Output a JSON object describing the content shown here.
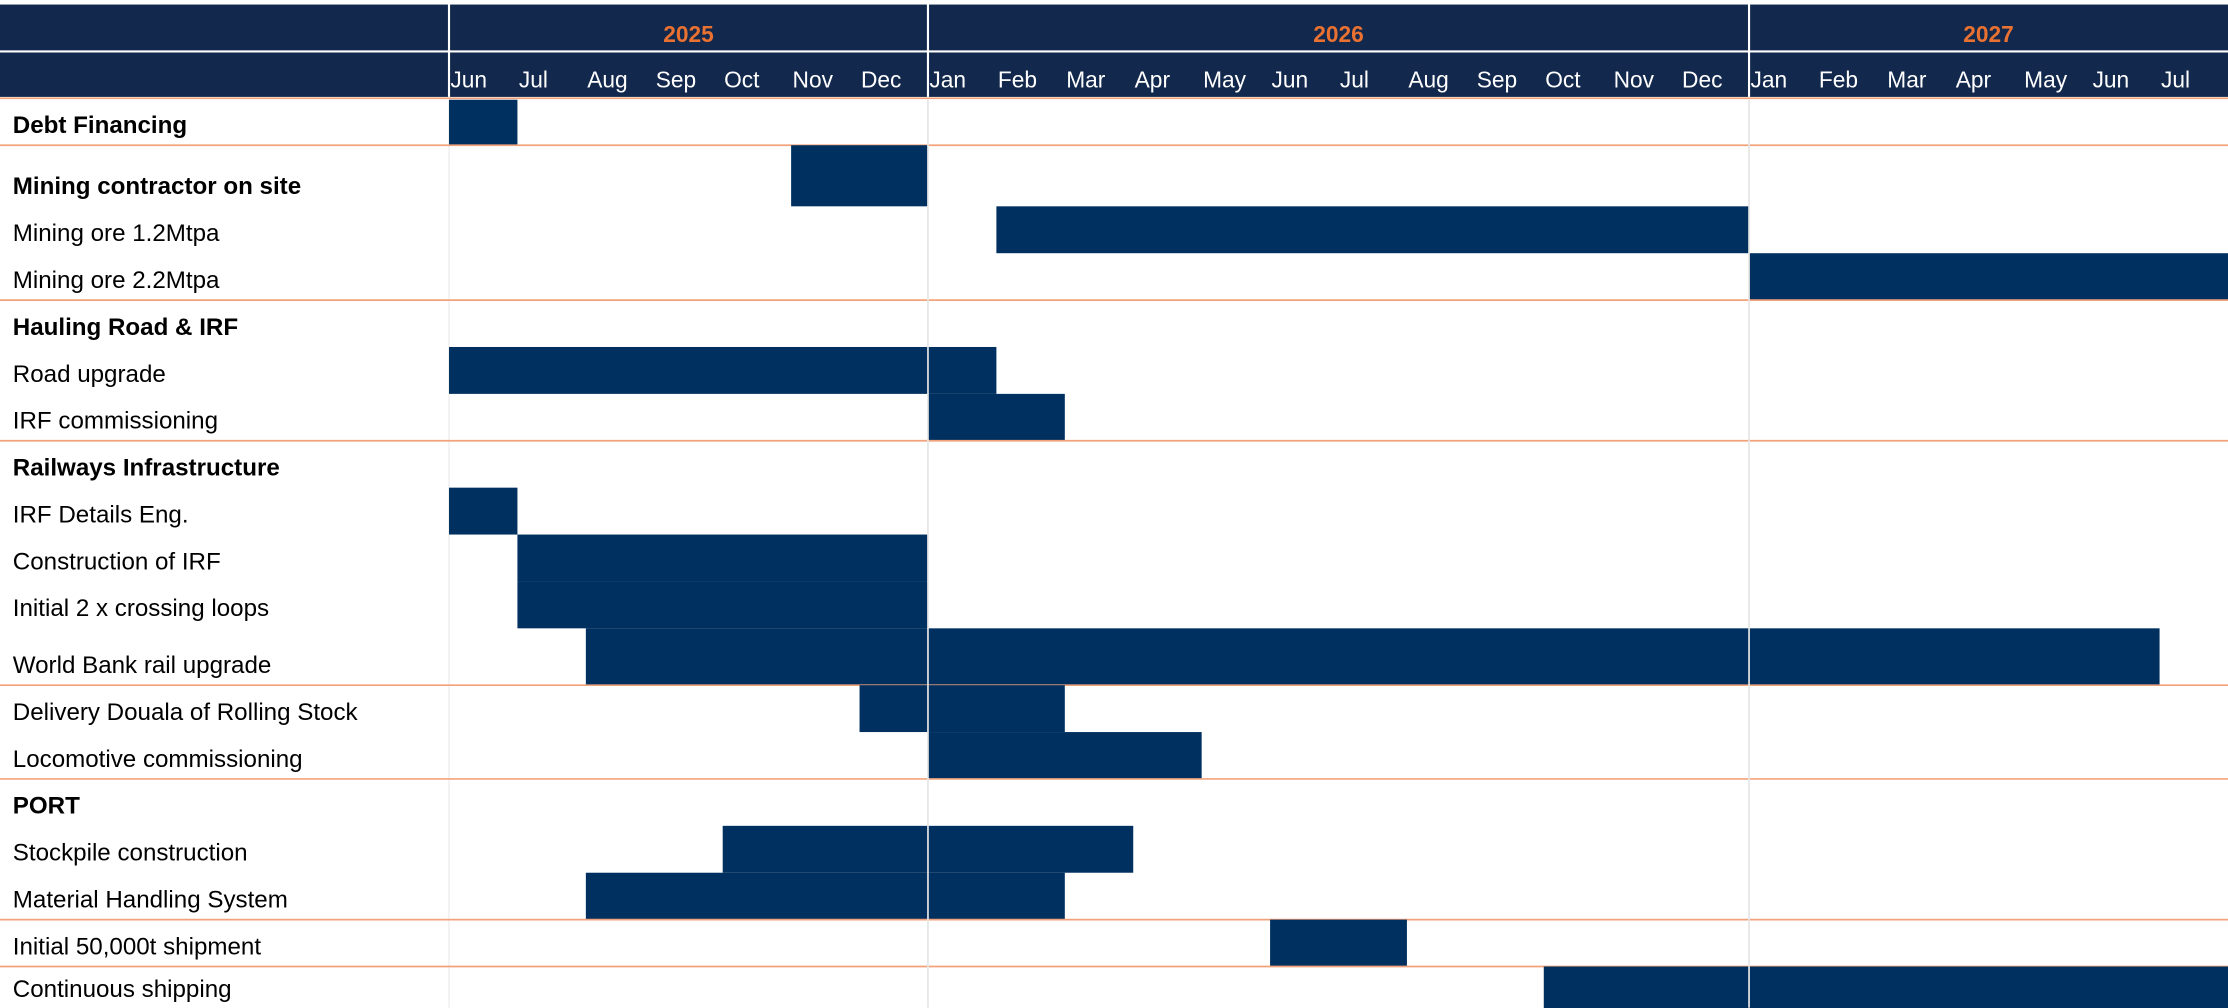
{
  "chart_data": {
    "type": "gantt",
    "years": [
      {
        "label": "2025",
        "start": 0,
        "end": 7
      },
      {
        "label": "2026",
        "start": 7,
        "end": 19
      },
      {
        "label": "2027",
        "start": 19,
        "end": 26
      }
    ],
    "categories": [
      "Jun",
      "Jul",
      "Aug",
      "Sep",
      "Oct",
      "Nov",
      "Dec",
      "Jan",
      "Feb",
      "Mar",
      "Apr",
      "May",
      "Jun",
      "Jul",
      "Aug",
      "Sep",
      "Oct",
      "Nov",
      "Dec",
      "Jan",
      "Feb",
      "Mar",
      "Apr",
      "May",
      "Jun",
      "Jul"
    ],
    "color": "#00305f",
    "header_color": "#12284c",
    "year_color": "#e97132",
    "tasks": [
      {
        "name": "Debt Financing",
        "bold": true,
        "start": 0,
        "end": 1,
        "group_end": true
      },
      {
        "name": "Mining contractor on site",
        "bold": true,
        "start": 5,
        "end": 7,
        "group_end": false
      },
      {
        "name": "Mining ore 1.2Mtpa",
        "bold": false,
        "start": 8,
        "end": 19,
        "group_end": false
      },
      {
        "name": "Mining ore 2.2Mtpa",
        "bold": false,
        "start": 19,
        "end": 26,
        "group_end": true
      },
      {
        "name": "Hauling Road & IRF",
        "bold": true,
        "start": null,
        "end": null,
        "group_end": false
      },
      {
        "name": "Road upgrade",
        "bold": false,
        "start": 0,
        "end": 8,
        "group_end": false
      },
      {
        "name": "IRF commissioning",
        "bold": false,
        "start": 7,
        "end": 9,
        "group_end": true
      },
      {
        "name": "Railways Infrastructure",
        "bold": true,
        "start": null,
        "end": null,
        "group_end": false
      },
      {
        "name": "IRF Details Eng.",
        "bold": false,
        "start": 0,
        "end": 1,
        "group_end": false
      },
      {
        "name": "Construction of IRF",
        "bold": false,
        "start": 1,
        "end": 7,
        "group_end": false
      },
      {
        "name": "Initial 2 x crossing loops",
        "bold": false,
        "start": 1,
        "end": 7,
        "group_end": false
      },
      {
        "name": "World Bank rail upgrade",
        "bold": false,
        "start": 2,
        "end": 25,
        "group_end": true
      },
      {
        "name": "Delivery Douala of Rolling Stock",
        "bold": false,
        "start": 6,
        "end": 9,
        "group_end": false
      },
      {
        "name": "Locomotive commissioning",
        "bold": false,
        "start": 7,
        "end": 11,
        "group_end": true
      },
      {
        "name": "PORT",
        "bold": true,
        "start": null,
        "end": null,
        "group_end": false
      },
      {
        "name": "Stockpile construction",
        "bold": false,
        "start": 4,
        "end": 10,
        "group_end": false
      },
      {
        "name": "Material Handling System",
        "bold": false,
        "start": 2,
        "end": 9,
        "group_end": true
      },
      {
        "name": "Initial 50,000t shipment",
        "bold": false,
        "start": 12,
        "end": 14,
        "group_end": true
      },
      {
        "name": "Continuous shipping",
        "bold": false,
        "start": 16,
        "end": 26,
        "group_end": false
      }
    ]
  }
}
